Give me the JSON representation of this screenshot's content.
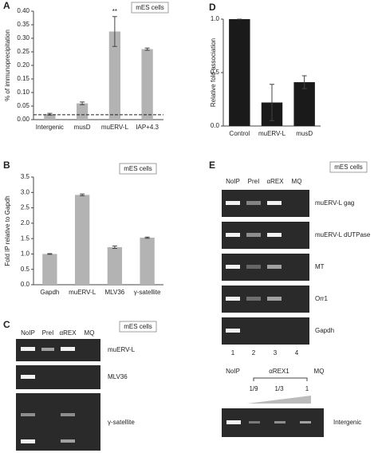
{
  "chart_data": [
    {
      "type": "bar",
      "label": "A",
      "note": "mES cells",
      "y_label": "% of immunoprecipitation",
      "categories": [
        "Intergenic",
        "musD",
        "muERV-L",
        "IAP+4.3"
      ],
      "series": [
        {
          "color": "#b3b3b3",
          "values": [
            0.02,
            0.06,
            0.325,
            0.26
          ],
          "errors": [
            0.003,
            0.005,
            0.055,
            0.004
          ]
        }
      ],
      "annotations": [
        {
          "category": 2,
          "text": "**"
        }
      ],
      "reference_line": 0.018,
      "ylim": [
        0,
        0.4
      ],
      "yticks": [
        {
          "value": 0,
          "label": "0.00"
        },
        {
          "value": 0.05,
          "label": "0.05"
        },
        {
          "value": 0.1,
          "label": "0.10"
        },
        {
          "value": 0.15,
          "label": "0.15"
        },
        {
          "value": 0.2,
          "label": "0.20"
        },
        {
          "value": 0.25,
          "label": "0.25"
        },
        {
          "value": 0.3,
          "label": "0.30"
        },
        {
          "value": 0.35,
          "label": "0.35"
        },
        {
          "value": 0.4,
          "label": "0.40"
        }
      ]
    },
    {
      "type": "bar",
      "label": "B",
      "note": "mES cells",
      "y_label": "Fold IP relative to Gapdh",
      "categories": [
        "Gapdh",
        "muERV-L",
        "MLV36",
        "γ-satellite"
      ],
      "series": [
        {
          "color": "#b3b3b3",
          "values": [
            1.0,
            2.92,
            1.22,
            1.53
          ],
          "errors": [
            0.01,
            0.03,
            0.04,
            0.02
          ]
        }
      ],
      "ylim": [
        0,
        3.5
      ],
      "yticks": [
        {
          "value": 0,
          "label": "0.0"
        },
        0.5,
        {
          "value": 1,
          "label": "1.0"
        },
        1.5,
        {
          "value": 2,
          "label": "2.0"
        },
        2.5,
        {
          "value": 3,
          "label": "3.0"
        },
        3.5
      ]
    },
    {
      "type": "bar",
      "label": "D",
      "y_label": "Relative fold association",
      "categories": [
        "Control",
        "muERV-L",
        "musD"
      ],
      "series": [
        {
          "color": "#1a1a1a",
          "values": [
            1.0,
            0.22,
            0.41
          ],
          "errors": [
            0,
            0.17,
            0.06
          ]
        }
      ],
      "ylim": [
        0,
        1
      ],
      "yticks": [
        {
          "value": 0,
          "label": "0.0"
        },
        0.5,
        {
          "value": 1,
          "label": "1.0"
        }
      ]
    }
  ],
  "gels": [
    {
      "label": "C",
      "note": "mES cells",
      "lanes": [
        "NoIP",
        "PreI",
        "αREX",
        "MQ"
      ],
      "rows": [
        "muERV-L",
        "MLV36",
        "γ-satellite"
      ]
    },
    {
      "label": "E",
      "note": "mES cells",
      "lanes": [
        "NoIP",
        "PreI",
        "αREX",
        "MQ"
      ],
      "rows": [
        "muERV-L gag",
        "muERV-L dUTPase",
        "MT",
        "Orr1",
        "Gapdh"
      ],
      "lane_numbers": [
        "1",
        "2",
        "3",
        "4"
      ],
      "titration": {
        "lanes": [
          "NoIP",
          "αREX1",
          "MQ"
        ],
        "dilutions": [
          "1/9",
          "1/3",
          "1"
        ],
        "row": "Intergenic"
      }
    }
  ]
}
